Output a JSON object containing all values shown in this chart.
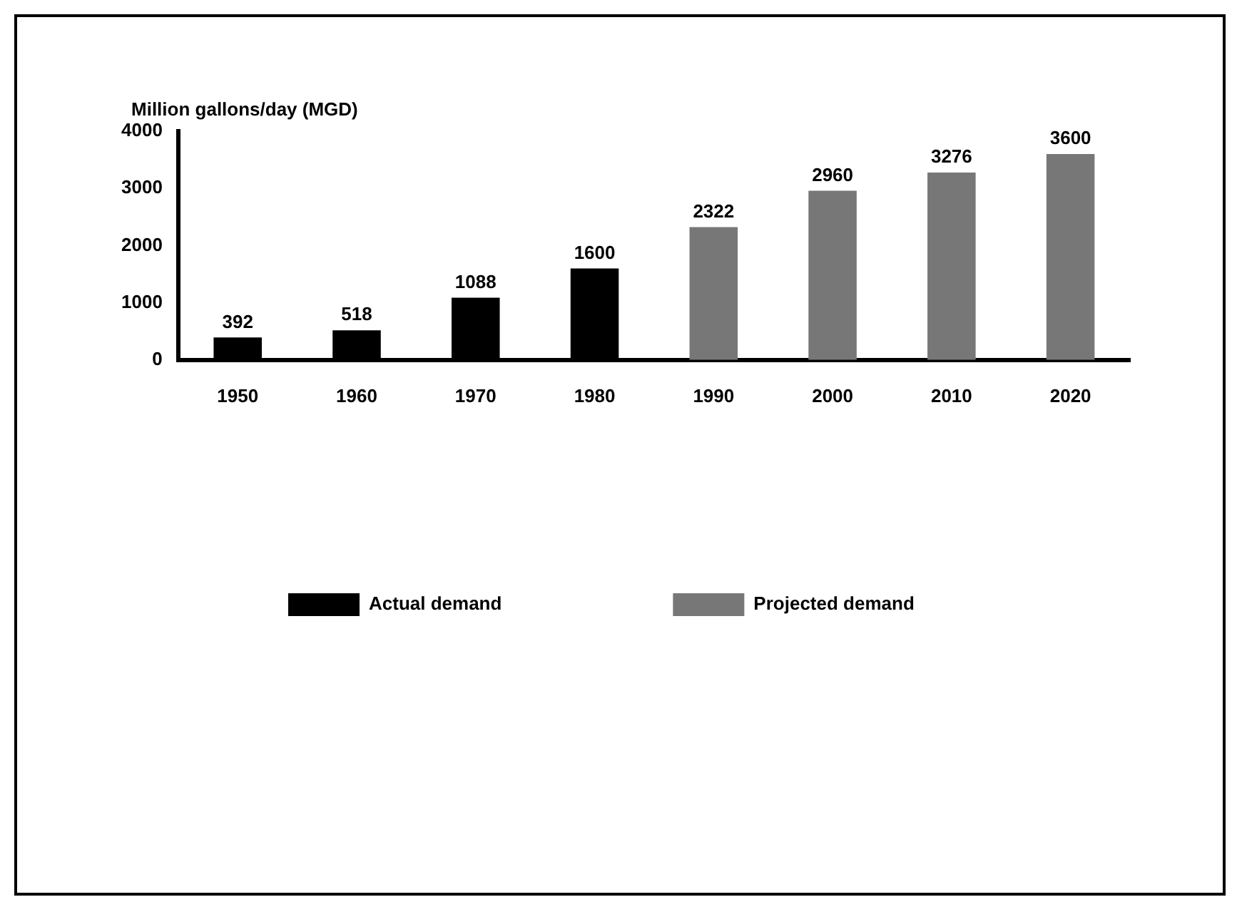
{
  "chart_data": {
    "type": "bar",
    "ylabel": "Million gallons/day (MGD)",
    "categories": [
      "1950",
      "1960",
      "1970",
      "1980",
      "1990",
      "2000",
      "2010",
      "2020"
    ],
    "series": [
      {
        "name": "Actual demand",
        "color": "#000000",
        "values": [
          392,
          518,
          1088,
          1600,
          null,
          null,
          null,
          null
        ]
      },
      {
        "name": "Projected demand",
        "color": "#777777",
        "values": [
          null,
          null,
          null,
          null,
          2322,
          2960,
          3276,
          3600
        ]
      }
    ],
    "ylim": [
      0,
      4000
    ],
    "yticks": [
      0,
      1000,
      2000,
      3000,
      4000
    ],
    "grid": false,
    "legend": "bottom",
    "data_labels": true
  }
}
